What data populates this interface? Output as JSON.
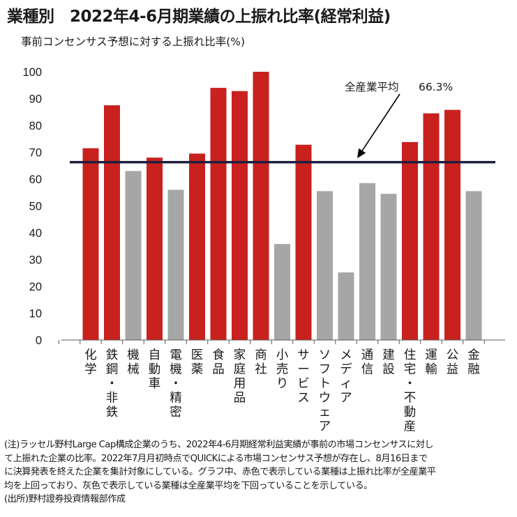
{
  "title": "業種別　2022年4-6月期業績の上振れ比率(経常利益)",
  "subtitle": "事前コンセンサス予想に対する上振れ比率(%)",
  "colors": {
    "above": "#c9211e",
    "below": "#a6a6a6",
    "average_line": "#1f1f3f",
    "axis": "#595959"
  },
  "chart_data": {
    "type": "bar",
    "categories": [
      "化学",
      "鉄鋼・非鉄",
      "機械",
      "自動車",
      "電機・精密",
      "医薬",
      "食品",
      "家庭用品",
      "商社",
      "小売り",
      "サービス",
      "ソフトウェア",
      "メディア",
      "通信",
      "建設",
      "住宅・不動産",
      "運輸",
      "公益",
      "金融"
    ],
    "values": [
      71.5,
      87.5,
      63,
      68,
      56,
      69.5,
      94,
      92.8,
      100,
      35.8,
      72.8,
      55.5,
      25.2,
      58.5,
      54.5,
      73.8,
      84.5,
      85.8,
      55.5
    ],
    "above_average": [
      true,
      true,
      false,
      true,
      false,
      true,
      true,
      true,
      true,
      false,
      true,
      false,
      false,
      false,
      false,
      true,
      true,
      true,
      false
    ],
    "average": {
      "label": "全産業平均",
      "value": 66.3,
      "value_label": "66.3%"
    },
    "ylim": [
      0,
      100
    ],
    "yticks": [
      0,
      10,
      20,
      30,
      40,
      50,
      60,
      70,
      80,
      90,
      100
    ],
    "grid": false,
    "xlabel": "",
    "ylabel": ""
  },
  "notes": [
    "(注)ラッセル野村Large Cap構成企業のうち、2022年4-6月期経常利益実績が事前の市場コンセンサスに対し",
    "て上振れた企業の比率。2022年7月月初時点でQUICKによる市場コンセンサス予想が存在し、8月16日まで",
    "に決算発表を終えた企業を集計対象にしている。グラフ中、赤色で表示している業種は上振れ比率が全産業平",
    "均を上回っており、灰色で表示している業種は全産業平均を下回っていることを示している。",
    "(出所)野村證券投資情報部作成"
  ]
}
